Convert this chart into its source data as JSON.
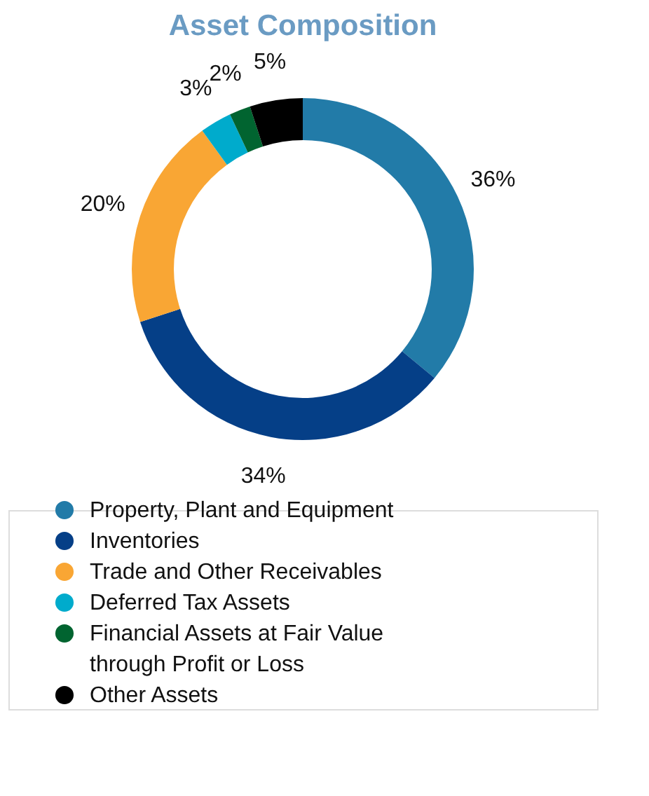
{
  "chart_data": {
    "type": "donut",
    "title": "Asset Composition",
    "categories": [
      "Property, Plant and Equipment",
      "Inventories",
      "Trade and Other Receivables",
      "Deferred Tax Assets",
      "Financial Assets at Fair Value through Profit or Loss",
      "Other Assets"
    ],
    "values": [
      36,
      34,
      20,
      3,
      2,
      5
    ],
    "colors": [
      "#227ba8",
      "#053f87",
      "#f9a634",
      "#00abcc",
      "#016430",
      "#000000"
    ],
    "value_labels": [
      "36%",
      "34%",
      "20%",
      "3%",
      "2%",
      "5%"
    ],
    "legend": "bottom"
  }
}
